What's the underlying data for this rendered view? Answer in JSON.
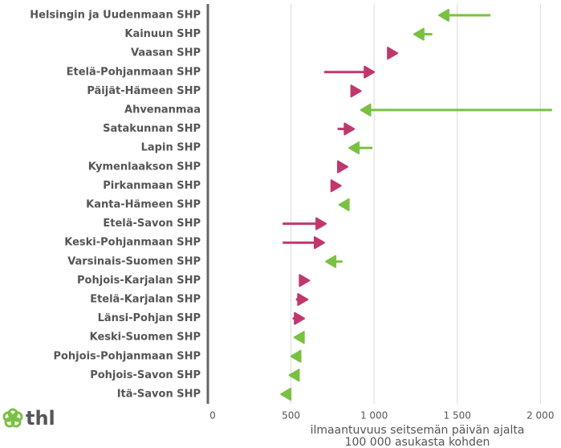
{
  "chart_data": {
    "type": "arrow",
    "categories": [
      "Helsingin ja Uudenmaan SHP",
      "Kainuun SHP",
      "Vaasan SHP",
      "Etelä-Pohjanmaan SHP",
      "Päijät-Hämeen SHP",
      "Ahvenanmaa",
      "Satakunnan SHP",
      "Lapin SHP",
      "Kymenlaakson SHP",
      "Pirkanmaan SHP",
      "Kanta-Hämeen SHP",
      "Etelä-Savon SHP",
      "Keski-Pohjanmaan SHP",
      "Varsinais-Suomen SHP",
      "Pohjois-Karjalan SHP",
      "Etelä-Karjalan SHP",
      "Länsi-Pohjan SHP",
      "Keski-Suomen SHP",
      "Pohjois-Pohjanmaan SHP",
      "Pohjois-Savon SHP",
      "Itä-Savon SHP"
    ],
    "start": [
      1700,
      1350,
      1080,
      700,
      870,
      2070,
      780,
      990,
      800,
      770,
      830,
      450,
      450,
      810,
      580,
      530,
      510,
      580,
      530,
      520,
      480
    ],
    "end": [
      1390,
      1240,
      1140,
      1000,
      920,
      920,
      880,
      850,
      840,
      800,
      790,
      710,
      700,
      710,
      610,
      600,
      580,
      520,
      500,
      490,
      440
    ],
    "increase_color": "#c0376e",
    "decrease_color": "#7ac143",
    "xlim": [
      0,
      2100
    ],
    "xticks": [
      0,
      500,
      {
        "value": 1000,
        "label": "1 000"
      },
      {
        "value": 1500,
        "label": "1 500"
      },
      {
        "value": 2000,
        "label": "2 000"
      }
    ],
    "xlabel": [
      "ilmaantuvuus seitsemän päivän ajalta",
      "100 000 asukasta kohden"
    ],
    "grid": true,
    "logo": "thl"
  }
}
